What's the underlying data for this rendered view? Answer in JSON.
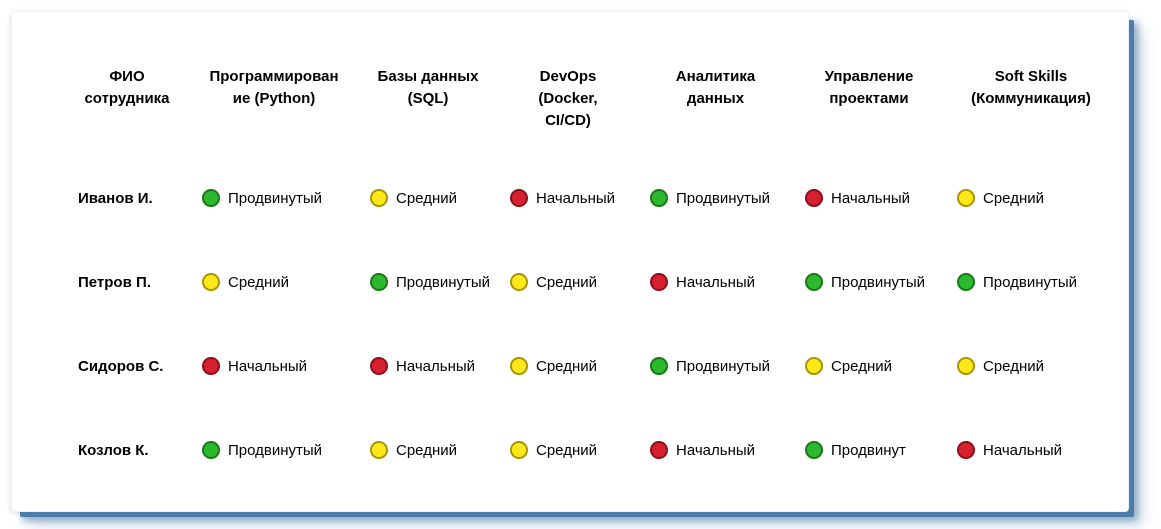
{
  "frame": {
    "background": "#ffffff",
    "border_color": "#4e7dab"
  },
  "status_colors": {
    "green": {
      "fill": "#2db92d",
      "border": "#187818"
    },
    "yellow": {
      "fill": "#ffe81a",
      "border": "#a69500"
    },
    "red": {
      "fill": "#d62030",
      "border": "#8b0f1a"
    }
  },
  "chart_data": {
    "type": "table",
    "title": "",
    "columns": [
      {
        "lines": [
          "ФИО",
          "сотрудника"
        ]
      },
      {
        "lines": [
          "Программирован",
          "ие (Python)"
        ]
      },
      {
        "lines": [
          "Базы данных",
          "(SQL)"
        ]
      },
      {
        "lines": [
          "DevOps",
          "(Docker,",
          "CI/CD)"
        ]
      },
      {
        "lines": [
          "Аналитика",
          "данных"
        ]
      },
      {
        "lines": [
          "Управление",
          "проектами"
        ]
      },
      {
        "lines": [
          "Soft Skills",
          "(Коммуникация)"
        ]
      }
    ],
    "rows": [
      {
        "name": "Иванов И.",
        "skills": [
          {
            "level": "Продвинутый",
            "status": "green"
          },
          {
            "level": "Средний",
            "status": "yellow"
          },
          {
            "level": "Начальный",
            "status": "red"
          },
          {
            "level": "Продвинутый",
            "status": "green"
          },
          {
            "level": "Начальный",
            "status": "red"
          },
          {
            "level": "Средний",
            "status": "yellow"
          }
        ]
      },
      {
        "name": "Петров П.",
        "skills": [
          {
            "level": "Средний",
            "status": "yellow"
          },
          {
            "level": "Продвинутый",
            "status": "green"
          },
          {
            "level": "Средний",
            "status": "yellow"
          },
          {
            "level": "Начальный",
            "status": "red"
          },
          {
            "level": "Продвинутый",
            "status": "green"
          },
          {
            "level": "Продвинутый",
            "status": "green"
          }
        ]
      },
      {
        "name": "Сидоров С.",
        "skills": [
          {
            "level": "Начальный",
            "status": "red"
          },
          {
            "level": "Начальный",
            "status": "red"
          },
          {
            "level": "Средний",
            "status": "yellow"
          },
          {
            "level": "Продвинутый",
            "status": "green"
          },
          {
            "level": "Средний",
            "status": "yellow"
          },
          {
            "level": "Средний",
            "status": "yellow"
          }
        ]
      },
      {
        "name": "Козлов К.",
        "skills": [
          {
            "level": "Продвинутый",
            "status": "green"
          },
          {
            "level": "Средний",
            "status": "yellow"
          },
          {
            "level": "Средний",
            "status": "yellow"
          },
          {
            "level": "Начальный",
            "status": "red"
          },
          {
            "level": "Продвинут",
            "status": "green"
          },
          {
            "level": "Начальный",
            "status": "red"
          }
        ]
      }
    ]
  }
}
